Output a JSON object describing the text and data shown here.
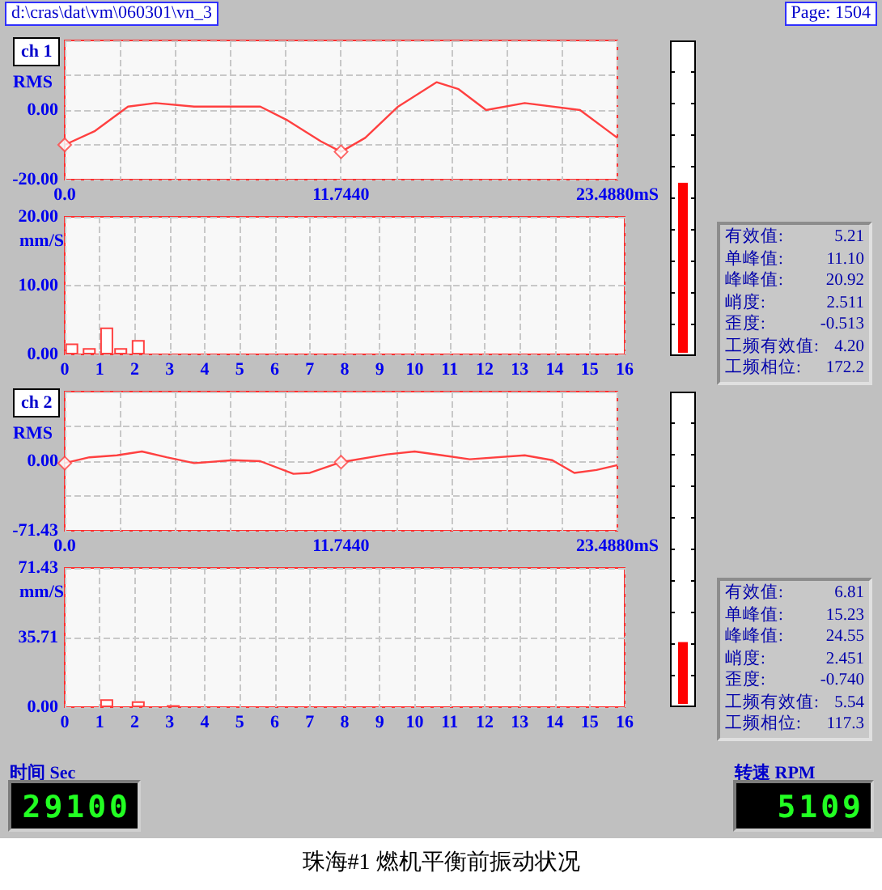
{
  "chart_data": [
    {
      "type": "other",
      "annotations": [
        "d:\\cras\\dat\\vm\\060301\\vn_3",
        "Page:  1504"
      ]
    },
    {
      "type": "line",
      "ylabel": "RMS",
      "annotations": [
        "ch 1"
      ],
      "xlim": [
        0,
        23.488
      ],
      "ylim": [
        -20,
        20
      ],
      "grid": true,
      "xticks": [
        {
          "value": 0,
          "label": "0.0"
        },
        {
          "value": 2.3488,
          "label": null
        },
        {
          "value": 4.6976,
          "label": null
        },
        {
          "value": 7.0464,
          "label": null
        },
        {
          "value": 9.3952,
          "label": null
        },
        {
          "value": 11.744,
          "label": "11.7440"
        },
        {
          "value": 14.0928,
          "label": null
        },
        {
          "value": 16.4416,
          "label": null
        },
        {
          "value": 18.7904,
          "label": null
        },
        {
          "value": 21.1392,
          "label": null
        },
        {
          "value": 23.488,
          "label": "23.4880mS"
        }
      ],
      "yticks": [
        {
          "value": -20,
          "label": "-20.00"
        },
        {
          "value": -10,
          "label": null
        },
        {
          "value": 0,
          "label": "0.00"
        },
        {
          "value": 10,
          "label": null
        },
        {
          "value": 20,
          "label": null
        }
      ],
      "series": [
        {
          "type": "line",
          "color": "#ff4040",
          "marker": "none",
          "x": [
            0,
            1.29,
            2.69,
            3.86,
            5.5,
            8.31,
            9.48,
            10.89,
            11.744,
            12.77,
            14.17,
            15.81,
            16.74,
            17.91,
            19.55,
            21.9,
            23.488
          ],
          "values": [
            -10,
            -6,
            1,
            2,
            1,
            1,
            -3,
            -9,
            -12,
            -8,
            1,
            8,
            6,
            0,
            2,
            0,
            -8
          ]
        },
        {
          "type": "scatter",
          "color": "#ff4040",
          "marker": "diamond",
          "x": [
            0,
            11.744
          ],
          "values": [
            -10,
            -12
          ]
        }
      ]
    },
    {
      "type": "bar",
      "ylabel": "mm/S",
      "xlim": [
        0,
        16
      ],
      "ylim": [
        0,
        20
      ],
      "grid": true,
      "color": "#ff4040",
      "xticks": [
        0,
        1,
        2,
        3,
        4,
        5,
        6,
        7,
        8,
        9,
        10,
        11,
        12,
        13,
        14,
        15,
        16
      ],
      "yticks": [
        {
          "value": 0,
          "label": "0.00"
        },
        {
          "value": 10,
          "label": "10.00"
        },
        {
          "value": 20,
          "label": "20.00"
        }
      ],
      "x": [
        0.2,
        0.7,
        1.2,
        1.6,
        2.1
      ],
      "values": [
        1.6,
        0.9,
        3.9,
        0.9,
        2.1
      ]
    },
    {
      "type": "other",
      "annotations": [
        "有效值:",
        "5.21",
        "单峰值:",
        "11.10",
        "峰峰值:",
        "20.92",
        "峭度:",
        "2.511",
        "歪度:",
        "-0.513",
        "工频有效值:",
        "4.20",
        "工频相位:",
        "172.2"
      ]
    },
    {
      "type": "line",
      "ylabel": "RMS",
      "annotations": [
        "ch 2"
      ],
      "xlim": [
        0,
        23.488
      ],
      "ylim": [
        -71.43,
        71.43
      ],
      "grid": true,
      "xticks": [
        {
          "value": 0,
          "label": "0.0"
        },
        {
          "value": 2.3488,
          "label": null
        },
        {
          "value": 4.6976,
          "label": null
        },
        {
          "value": 7.0464,
          "label": null
        },
        {
          "value": 9.3952,
          "label": null
        },
        {
          "value": 11.744,
          "label": "11.7440"
        },
        {
          "value": 14.0928,
          "label": null
        },
        {
          "value": 16.4416,
          "label": null
        },
        {
          "value": 18.7904,
          "label": null
        },
        {
          "value": 21.1392,
          "label": null
        },
        {
          "value": 23.488,
          "label": "23.4880mS"
        }
      ],
      "yticks": [
        {
          "value": -71.43,
          "label": "-71.43"
        },
        {
          "value": -35.715,
          "label": null
        },
        {
          "value": 0,
          "label": "0.00"
        },
        {
          "value": 35.715,
          "label": null
        },
        {
          "value": 71.43,
          "label": null
        }
      ],
      "series": [
        {
          "type": "line",
          "color": "#ff4040",
          "marker": "none",
          "x": [
            0,
            1.05,
            2.22,
            3.28,
            4.33,
            5.5,
            7.14,
            8.31,
            9.72,
            10.42,
            11.744,
            13.7,
            14.87,
            16.04,
            17.21,
            19.55,
            20.72,
            21.66,
            22.6,
            23.488
          ],
          "values": [
            -2,
            4,
            6,
            10,
            4,
            -2,
            1,
            0,
            -13,
            -12,
            -1,
            7,
            10,
            6,
            2,
            6,
            1,
            -12,
            -9,
            -4
          ]
        },
        {
          "type": "scatter",
          "color": "#ff4040",
          "marker": "diamond",
          "x": [
            0,
            11.744
          ],
          "values": [
            -2,
            -1
          ]
        }
      ]
    },
    {
      "type": "bar",
      "ylabel": "mm/S",
      "xlim": [
        0,
        16
      ],
      "ylim": [
        0,
        71.43
      ],
      "grid": true,
      "color": "#ff4040",
      "xticks": [
        0,
        1,
        2,
        3,
        4,
        5,
        6,
        7,
        8,
        9,
        10,
        11,
        12,
        13,
        14,
        15,
        16
      ],
      "yticks": [
        {
          "value": 0,
          "label": "0.00"
        },
        {
          "value": 35.71,
          "label": "35.71"
        },
        {
          "value": 71.43,
          "label": "71.43"
        }
      ],
      "x": [
        1.2,
        2.1,
        3.1
      ],
      "values": [
        4,
        3,
        1
      ]
    },
    {
      "type": "other",
      "annotations": [
        "有效值:",
        "6.81",
        "单峰值:",
        "15.23",
        "峰峰值:",
        "24.55",
        "峭度:",
        "2.451",
        "歪度:",
        "-0.740",
        "工频有效值:",
        "5.54",
        "工频相位:",
        "117.3"
      ]
    },
    {
      "type": "other",
      "annotations": [
        "时间 Sec",
        "29100"
      ]
    },
    {
      "type": "other",
      "annotations": [
        "转速 RPM",
        "5109"
      ]
    },
    {
      "type": "other",
      "title": "珠海#1 燃机平衡前振动状况"
    }
  ]
}
